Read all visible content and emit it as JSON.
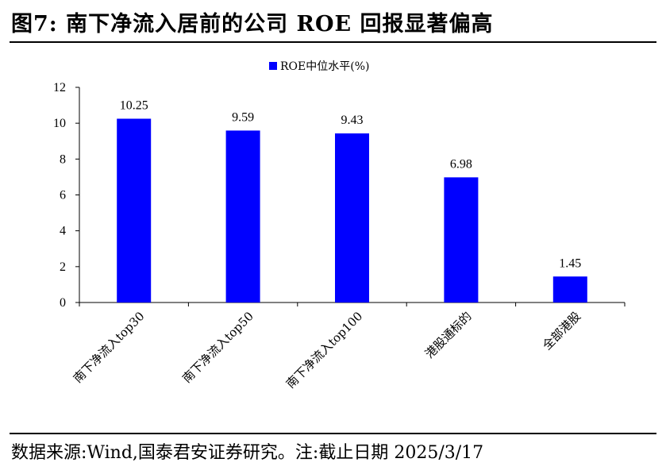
{
  "header": {
    "title": "图7:  南下净流入居前的公司 ROE 回报显著偏高"
  },
  "footer": {
    "source": "数据来源:Wind,国泰君安证券研究。注:截止日期 2025/3/17"
  },
  "chart_data": {
    "type": "bar",
    "categories": [
      "南下净流入top30",
      "南下净流入top50",
      "南下净流入top100",
      "港股通标的",
      "全部港股"
    ],
    "series": [
      {
        "name": "ROE中位水平(%)",
        "values": [
          10.25,
          9.59,
          9.43,
          6.98,
          1.45
        ],
        "color": "#0000FF"
      }
    ],
    "data_labels": [
      "10.25",
      "9.59",
      "9.43",
      "6.98",
      "1.45"
    ],
    "ylim": [
      0,
      12
    ],
    "yticks": [
      0,
      2,
      4,
      6,
      8,
      10,
      12
    ],
    "grid": false,
    "legend_position": "top-center"
  }
}
